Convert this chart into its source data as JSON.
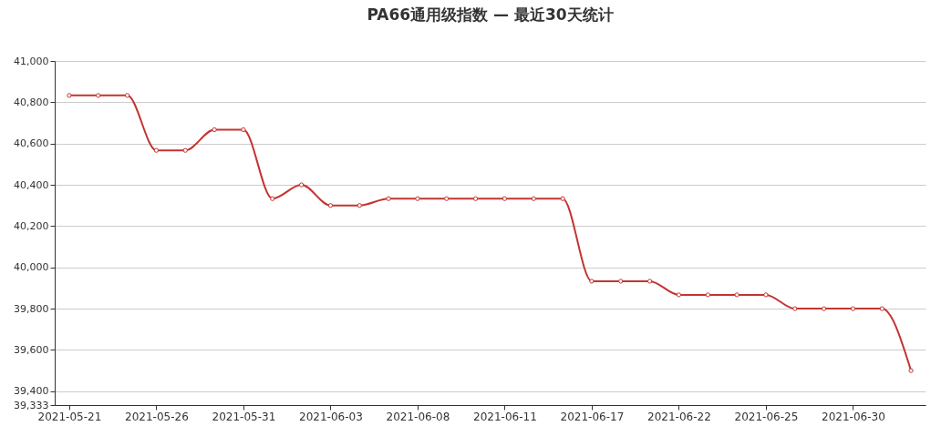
{
  "chart_data": {
    "type": "line",
    "title": "PA66通用级指数  —  最近30天统计",
    "categories": [
      "2021-05-21",
      null,
      null,
      "2021-05-26",
      null,
      null,
      "2021-05-31",
      null,
      null,
      "2021-06-03",
      null,
      null,
      "2021-06-08",
      null,
      null,
      "2021-06-11",
      null,
      null,
      "2021-06-17",
      null,
      null,
      "2021-06-22",
      null,
      null,
      "2021-06-25",
      null,
      null,
      "2021-06-30",
      null,
      null
    ],
    "series": [
      {
        "color": "#c23531",
        "values": [
          40833,
          40833,
          40833,
          40567,
          40567,
          40667,
          40667,
          40333,
          40400,
          40300,
          40300,
          40333,
          40333,
          40333,
          40333,
          40333,
          40333,
          40333,
          39933,
          39933,
          39933,
          39867,
          39867,
          39867,
          39867,
          39800,
          39800,
          39800,
          39800,
          39500
        ]
      }
    ],
    "ylim": [
      39333,
      41000
    ],
    "yticks": [
      {
        "value": 39333,
        "label": "39,333"
      },
      {
        "value": 39400,
        "label": "39,400"
      },
      {
        "value": 39600,
        "label": "39,600"
      },
      {
        "value": 39800,
        "label": "39,800"
      },
      {
        "value": 40000,
        "label": "40,000"
      },
      {
        "value": 40200,
        "label": "40,200"
      },
      {
        "value": 40400,
        "label": "40,400"
      },
      {
        "value": 40600,
        "label": "40,600"
      },
      {
        "value": 40800,
        "label": "40,800"
      },
      {
        "value": 41000,
        "label": "41,000"
      }
    ],
    "grid": "y",
    "marker": "circle",
    "line_style": "solid"
  }
}
